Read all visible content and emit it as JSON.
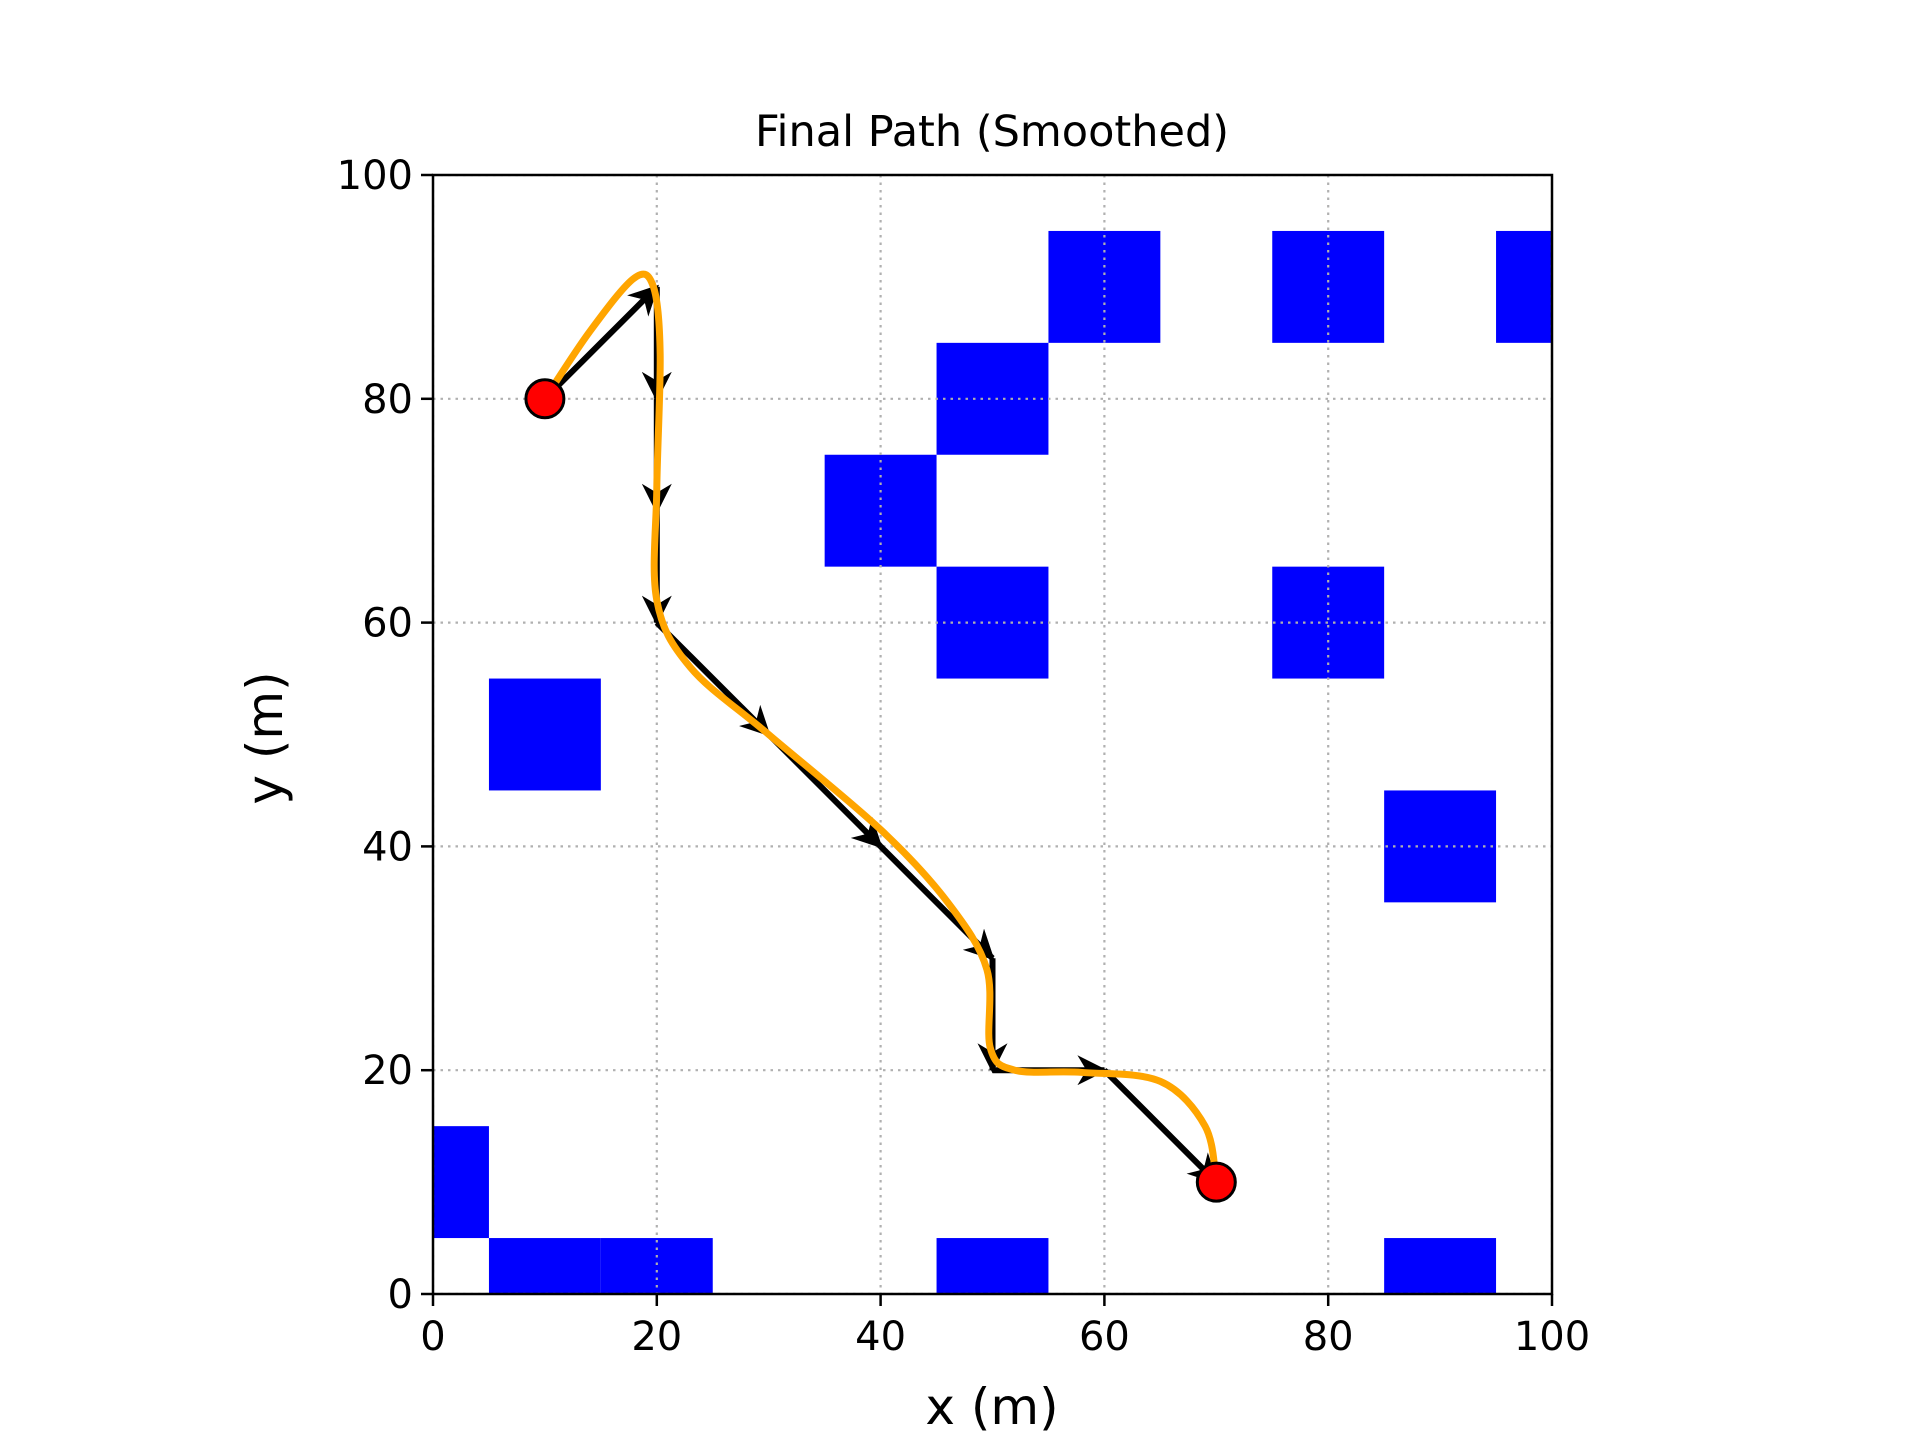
{
  "chart_data": {
    "type": "scatter",
    "title": "Final Path (Smoothed)",
    "xlabel": "x (m)",
    "ylabel": "y (m)",
    "xlim": [
      0,
      100
    ],
    "ylim": [
      0,
      100
    ],
    "xticks": [
      0,
      20,
      40,
      60,
      80,
      100
    ],
    "yticks": [
      0,
      20,
      40,
      60,
      80,
      100
    ],
    "tick_labels_x": [
      "0",
      "20",
      "40",
      "60",
      "80",
      "100"
    ],
    "tick_labels_y": [
      "0",
      "20",
      "40",
      "60",
      "80",
      "100"
    ],
    "grid": true,
    "cell_size": 10,
    "obstacles": [
      [
        0,
        10
      ],
      [
        10,
        0
      ],
      [
        20,
        0
      ],
      [
        10,
        50
      ],
      [
        40,
        70
      ],
      [
        50,
        80
      ],
      [
        50,
        60
      ],
      [
        60,
        90
      ],
      [
        50,
        0
      ],
      [
        80,
        90
      ],
      [
        100,
        90
      ],
      [
        80,
        60
      ],
      [
        90,
        40
      ],
      [
        90,
        0
      ]
    ],
    "raw_path": [
      [
        10,
        80
      ],
      [
        20,
        90
      ],
      [
        20,
        80
      ],
      [
        20,
        70
      ],
      [
        20,
        60
      ],
      [
        30,
        50
      ],
      [
        40,
        40
      ],
      [
        50,
        30
      ],
      [
        50,
        20
      ],
      [
        60,
        20
      ],
      [
        70,
        10
      ]
    ],
    "smoothed_path": [
      [
        10,
        80
      ],
      [
        14,
        86
      ],
      [
        18,
        90.8
      ],
      [
        19.7,
        90
      ],
      [
        20.3,
        84
      ],
      [
        20,
        72
      ],
      [
        20,
        62
      ],
      [
        23,
        56
      ],
      [
        30,
        50
      ],
      [
        40,
        41.5
      ],
      [
        46,
        35
      ],
      [
        49.5,
        29
      ],
      [
        49.8,
        22
      ],
      [
        52,
        20
      ],
      [
        58,
        19.8
      ],
      [
        65,
        19
      ],
      [
        69,
        15
      ],
      [
        70,
        10
      ]
    ],
    "start": [
      10,
      80
    ],
    "goal": [
      70,
      10
    ],
    "colors": {
      "obstacle": "#0000ff",
      "path_arrow": "#000000",
      "smoothed": "#ffa500",
      "endpoint": "#ff0000",
      "grid": "#b0b0b0"
    }
  }
}
